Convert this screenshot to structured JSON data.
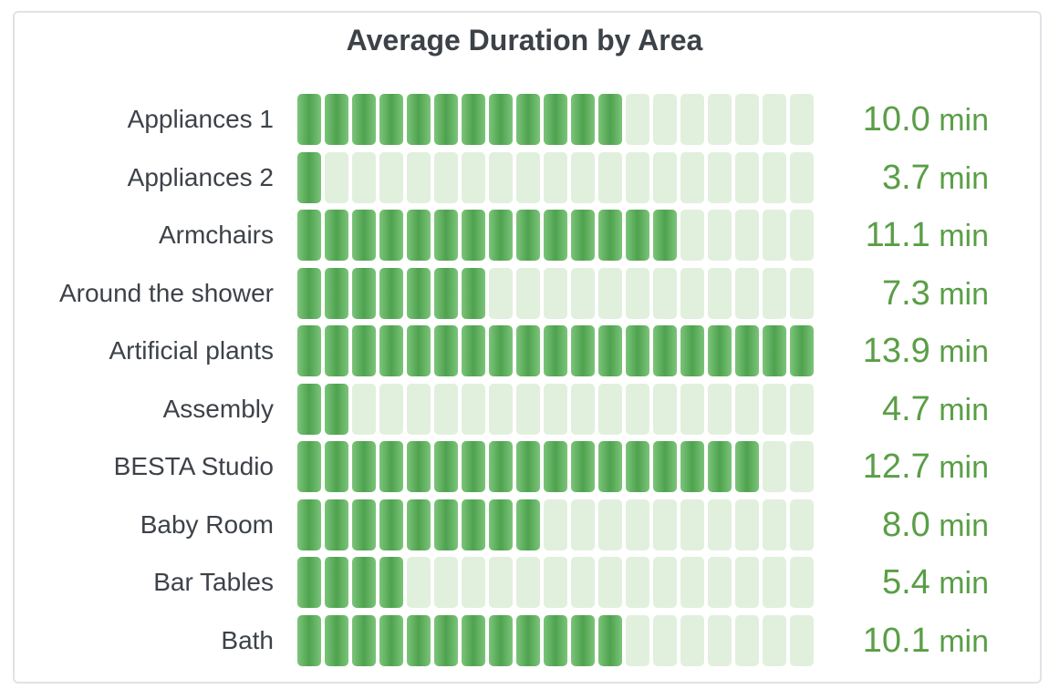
{
  "chart_data": {
    "type": "bar",
    "title": "Average Duration by Area",
    "unit": "min",
    "cells_total": 19,
    "scale_max": 13.9,
    "colors": {
      "filled": "#4ea24e",
      "empty": "#e1f0dd",
      "value_text": "#5a9e47"
    },
    "categories": [
      "Appliances 1",
      "Appliances 2",
      "Armchairs",
      "Around the shower",
      "Artificial plants",
      "Assembly",
      "BESTA Studio",
      "Baby Room",
      "Bar Tables",
      "Bath"
    ],
    "values": [
      10.0,
      3.7,
      11.1,
      7.3,
      13.9,
      4.7,
      12.7,
      8.0,
      5.4,
      10.1
    ],
    "value_labels": [
      "10.0",
      "3.7",
      "11.1",
      "7.3",
      "13.9",
      "4.7",
      "12.7",
      "8.0",
      "5.4",
      "10.1"
    ],
    "filled_cells": [
      12,
      1,
      14,
      7,
      19,
      2,
      17,
      9,
      4,
      12
    ]
  }
}
